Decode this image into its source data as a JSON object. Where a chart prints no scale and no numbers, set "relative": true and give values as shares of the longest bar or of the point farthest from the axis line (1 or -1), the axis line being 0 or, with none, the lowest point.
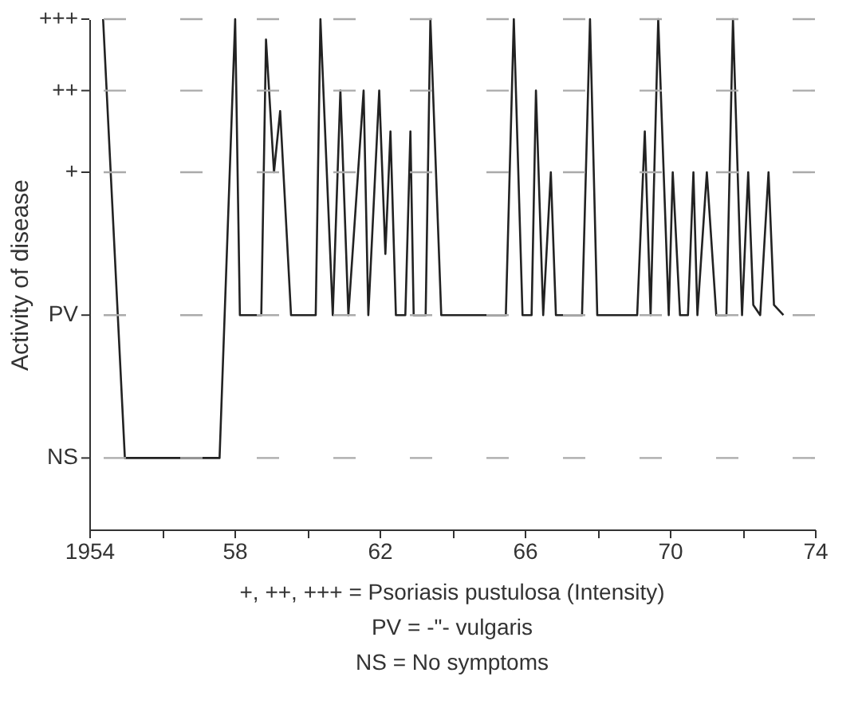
{
  "chart_data": {
    "type": "line",
    "ylabel": "Activity of disease",
    "relative": true,
    "annotations": [
      "+, ++, +++ = Psoriasis pustulosa (Intensity)",
      "PV =    -\"-    vulgaris",
      "NS = No symptoms"
    ],
    "x": [
      1954.38,
      1954.98,
      1957.59,
      1958.02,
      1958.15,
      1958.74,
      1958.87,
      1959.09,
      1959.26,
      1959.56,
      1960.24,
      1960.37,
      1960.71,
      1960.92,
      1961.14,
      1961.56,
      1961.69,
      1961.99,
      1962.16,
      1962.3,
      1962.45,
      1962.71,
      1962.85,
      1962.94,
      1963.27,
      1963.4,
      1963.7,
      1965.48,
      1965.7,
      1965.94,
      1966.19,
      1966.31,
      1966.51,
      1966.72,
      1966.86,
      1967.58,
      1967.8,
      1968.0,
      1969.1,
      1969.31,
      1969.47,
      1969.68,
      1969.97,
      1970.08,
      1970.28,
      1970.5,
      1970.65,
      1970.76,
      1971.02,
      1971.28,
      1971.56,
      1971.74,
      1971.99,
      1972.16,
      1972.3,
      1972.49,
      1972.72,
      1972.87,
      1973.13
    ],
    "series": [
      {
        "color": "#222222",
        "values": [
          1,
          0.14,
          0.14,
          1,
          0.42,
          0.42,
          0.96,
          0.7,
          0.82,
          0.42,
          0.42,
          1,
          0.42,
          0.86,
          0.42,
          0.86,
          0.42,
          0.86,
          0.54,
          0.78,
          0.42,
          0.42,
          0.78,
          0.42,
          0.42,
          1,
          0.42,
          0.42,
          1,
          0.42,
          0.42,
          0.86,
          0.42,
          0.7,
          0.42,
          0.42,
          1,
          0.42,
          0.42,
          0.78,
          0.42,
          1,
          0.42,
          0.7,
          0.42,
          0.42,
          0.7,
          0.42,
          0.7,
          0.42,
          0.42,
          1,
          0.42,
          0.7,
          0.44,
          0.42,
          0.7,
          0.44,
          0.42
        ]
      }
    ],
    "xlim": [
      1954,
      1974
    ],
    "xticks": [
      {
        "value": 1954,
        "label": "1954"
      },
      {
        "value": 1956,
        "label": null
      },
      {
        "value": 1958,
        "label": "58"
      },
      {
        "value": 1960,
        "label": null
      },
      {
        "value": 1962,
        "label": "62"
      },
      {
        "value": 1964,
        "label": null
      },
      {
        "value": 1966,
        "label": "66"
      },
      {
        "value": 1968,
        "label": null
      },
      {
        "value": 1970,
        "label": "70"
      },
      {
        "value": 1972,
        "label": null
      },
      {
        "value": 1974,
        "label": "74"
      }
    ],
    "ref_lines": [
      {
        "axis": "y",
        "value": 0.14,
        "label": "NS",
        "color": "#aaaaaa",
        "line_style": "dashed"
      },
      {
        "axis": "y",
        "value": 0.42,
        "label": "PV",
        "color": "#aaaaaa",
        "line_style": "dashed"
      },
      {
        "axis": "y",
        "value": 0.7,
        "label": "+",
        "color": "#aaaaaa",
        "line_style": "dashed"
      },
      {
        "axis": "y",
        "value": 0.86,
        "label": "++",
        "color": "#aaaaaa",
        "line_style": "dashed"
      },
      {
        "axis": "y",
        "value": 1,
        "label": "+++",
        "color": "#aaaaaa",
        "line_style": "dashed"
      }
    ],
    "legend": false,
    "marker": "none",
    "line_style": "solid"
  }
}
